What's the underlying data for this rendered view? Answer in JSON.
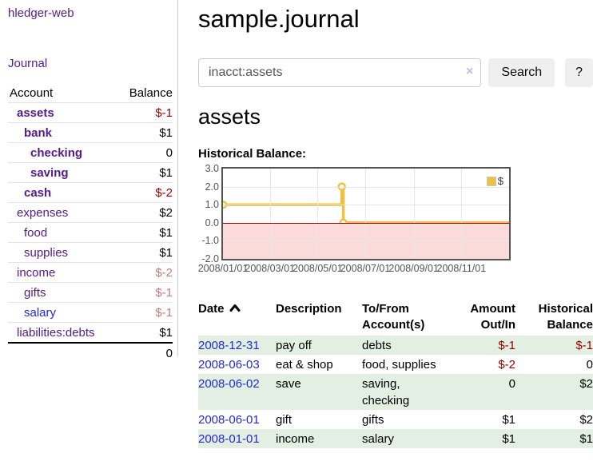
{
  "app": {
    "brand": "hledger-web"
  },
  "nav": {
    "journal": "Journal"
  },
  "sidebar": {
    "header": {
      "account": "Account",
      "balance": "Balance"
    },
    "accounts": [
      {
        "name": "assets",
        "balance": "$-1"
      },
      {
        "name": "bank",
        "balance": "$1"
      },
      {
        "name": "checking",
        "balance": "0"
      },
      {
        "name": "saving",
        "balance": "$1"
      },
      {
        "name": "cash",
        "balance": "$-2"
      },
      {
        "name": "expenses",
        "balance": "$2"
      },
      {
        "name": "food",
        "balance": "$1"
      },
      {
        "name": "supplies",
        "balance": "$1"
      },
      {
        "name": "income",
        "balance": "$-2"
      },
      {
        "name": "gifts",
        "balance": "$-1"
      },
      {
        "name": "salary",
        "balance": "$-1"
      },
      {
        "name": "liabilities:debts",
        "balance": "$1"
      }
    ],
    "total": "0"
  },
  "header": {
    "title": "sample.journal"
  },
  "search": {
    "value": "inacct:assets",
    "clear_icon": "×",
    "button_label": "Search",
    "help_label": "?"
  },
  "account_page": {
    "title": "assets",
    "chart_heading": "Historical Balance:"
  },
  "chart_data": {
    "type": "line",
    "step": true,
    "series": [
      {
        "name": "$",
        "color": "#edc240",
        "points": [
          [
            "2008-01-01",
            1.0
          ],
          [
            "2008-06-01",
            2.0
          ],
          [
            "2008-06-03",
            0.0
          ],
          [
            "2008-12-31",
            -1.0
          ]
        ]
      }
    ],
    "x_range": [
      "2008-01-01",
      "2009-01-01"
    ],
    "x_ticks": [
      "2008-01-01",
      "2008-03-01",
      "2008-05-01",
      "2008-07-01",
      "2008-09-01",
      "2008-11-01"
    ],
    "x_tick_labels": [
      "2008/01/01",
      "2008/03/01",
      "2008/05/01",
      "2008/07/01",
      "2008/09/01",
      "2008/11/01"
    ],
    "y_ticks": [
      3.0,
      2.0,
      1.0,
      0.0,
      -1.0,
      -2.0
    ],
    "y_tick_labels": [
      "3.0",
      "2.0",
      "1.0",
      "0.0",
      "-1.0",
      "-2.0"
    ],
    "ylim": [
      -2,
      3
    ],
    "grid": true,
    "legend": "$",
    "legend_position": "top-right",
    "negative_region_color": "#fbdada",
    "zero_line_color": "#a00000"
  },
  "register": {
    "headers": {
      "date": "Date",
      "description": "Description",
      "account_line1": "To/From",
      "account_line2": "Account(s)",
      "amount_line1": "Amount",
      "amount_line2": "Out/In",
      "balance_line1": "Historical",
      "balance_line2": "Balance"
    },
    "rows": [
      {
        "date": "2008-12-31",
        "description": "pay off",
        "accounts": "debts",
        "amount": "$-1",
        "balance": "$-1"
      },
      {
        "date": "2008-06-03",
        "description": "eat & shop",
        "accounts": "food, supplies",
        "amount": "$-2",
        "balance": "0"
      },
      {
        "date": "2008-06-02",
        "description": "save",
        "accounts": "saving, checking",
        "amount": "0",
        "balance": "$2"
      },
      {
        "date": "2008-06-01",
        "description": "gift",
        "accounts": "gifts",
        "amount": "$1",
        "balance": "$2"
      },
      {
        "date": "2008-01-01",
        "description": "income",
        "accounts": "salary",
        "amount": "$1",
        "balance": "$1"
      }
    ]
  },
  "colors": {
    "link_purple": "#551a8b",
    "link_blue": "#2727d8",
    "negative_strong": "#990000",
    "negative_muted": "#c47c7c",
    "row_green": "#e2efe2",
    "chart_line": "#edc240",
    "chart_negative_fill": "#fbdada",
    "chart_zero_line": "#a00000"
  }
}
